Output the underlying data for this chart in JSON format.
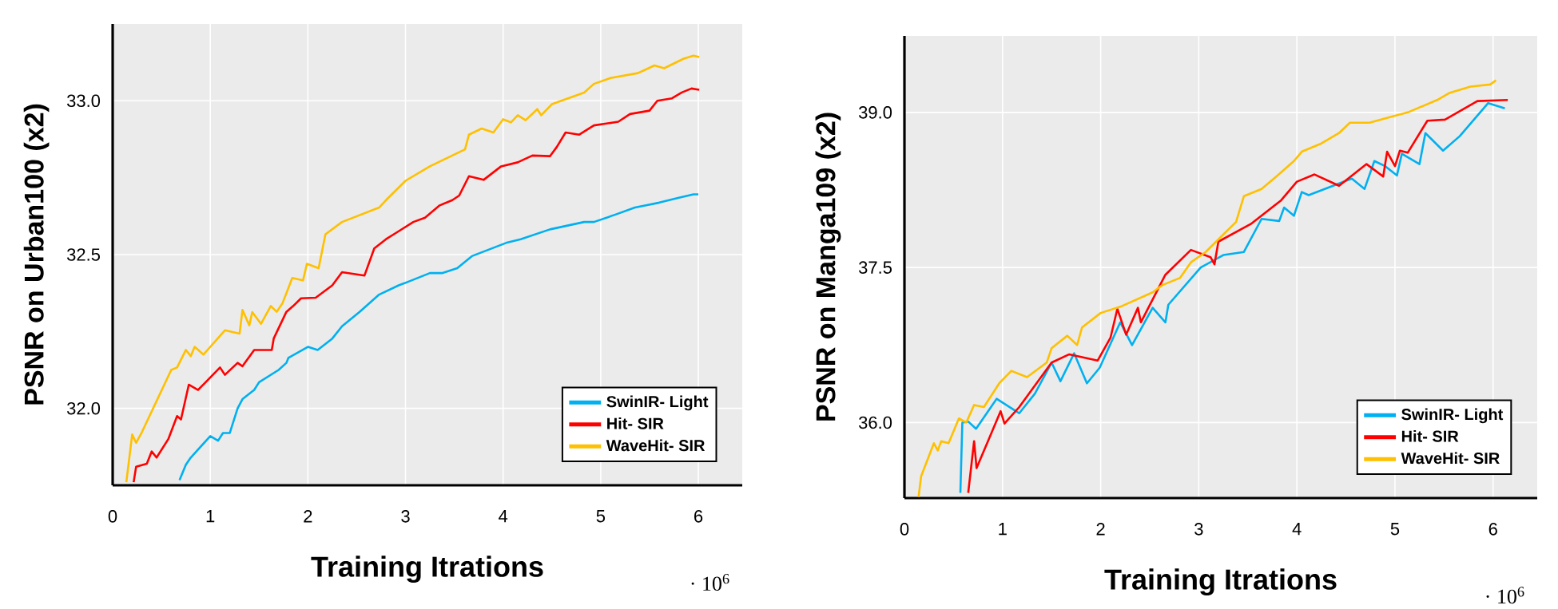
{
  "chart_data": [
    {
      "type": "line",
      "xlabel": "Training Itrations",
      "ylabel": "PSNR on Urban100 (x2)",
      "annotations": [
        "· 10$^{6}$"
      ],
      "xlim": [
        0,
        6.45
      ],
      "ylim": [
        31.75,
        33.25
      ],
      "xticks": [
        0,
        1,
        2,
        3,
        4,
        5,
        6
      ],
      "yticks": [
        {
          "value": 32,
          "label": "32.0"
        },
        {
          "value": 32.5,
          "label": "32.5"
        },
        {
          "value": 33,
          "label": "33.0"
        }
      ],
      "grid": true,
      "legend": "bottom right",
      "series": [
        {
          "name": "SwinIR- Light",
          "color": "#00b0f0",
          "x": [
            0.685,
            0.75,
            0.8,
            1.0,
            1.08,
            1.13,
            1.2,
            1.28,
            1.33,
            1.45,
            1.5,
            1.7,
            1.78,
            1.8,
            2.0,
            2.1,
            2.25,
            2.35,
            2.53,
            2.73,
            2.93,
            3.03,
            3.25,
            3.38,
            3.53,
            3.68,
            4.03,
            4.18,
            4.48,
            4.83,
            4.93,
            5.15,
            5.35,
            5.6,
            5.8,
            5.95,
            6.0
          ],
          "values": [
            31.767,
            31.817,
            31.84,
            31.91,
            31.895,
            31.92,
            31.92,
            32.0,
            32.03,
            32.06,
            32.085,
            32.125,
            32.148,
            32.164,
            32.2,
            32.19,
            32.227,
            32.267,
            32.314,
            32.37,
            32.4,
            32.412,
            32.44,
            32.44,
            32.456,
            32.495,
            32.538,
            32.55,
            32.582,
            32.606,
            32.606,
            32.63,
            32.653,
            32.669,
            32.685,
            32.696,
            32.696
          ]
        },
        {
          "name": "Hit- SIR",
          "color": "#ff0000",
          "x": [
            0.215,
            0.24,
            0.35,
            0.4,
            0.45,
            0.57,
            0.66,
            0.7,
            0.78,
            0.875,
            1.1,
            1.15,
            1.28,
            1.33,
            1.45,
            1.63,
            1.65,
            1.78,
            1.85,
            1.93,
            2.08,
            2.25,
            2.35,
            2.58,
            2.68,
            2.8,
            2.9,
            3.08,
            3.2,
            3.35,
            3.48,
            3.55,
            3.65,
            3.8,
            3.98,
            4.15,
            4.3,
            4.48,
            4.55,
            4.64,
            4.78,
            4.93,
            5.18,
            5.3,
            5.5,
            5.58,
            5.73,
            5.83,
            5.93,
            6.01
          ],
          "values": [
            31.76,
            31.81,
            31.82,
            31.86,
            31.84,
            31.9,
            31.975,
            31.964,
            32.077,
            32.06,
            32.133,
            32.109,
            32.148,
            32.137,
            32.19,
            32.19,
            32.227,
            32.314,
            32.333,
            32.358,
            32.36,
            32.4,
            32.443,
            32.432,
            32.52,
            32.55,
            32.57,
            32.606,
            32.62,
            32.66,
            32.677,
            32.692,
            32.755,
            32.743,
            32.787,
            32.8,
            32.822,
            32.82,
            32.85,
            32.897,
            32.89,
            32.92,
            32.932,
            32.957,
            32.968,
            33.0,
            33.008,
            33.027,
            33.04,
            33.036
          ]
        },
        {
          "name": "WaveHit- SIR",
          "color": "#ffc000",
          "x": [
            0.14,
            0.2,
            0.24,
            0.3,
            0.6,
            0.66,
            0.75,
            0.8,
            0.84,
            0.93,
            1.15,
            1.3,
            1.33,
            1.4,
            1.43,
            1.52,
            1.62,
            1.68,
            1.74,
            1.84,
            1.95,
            1.99,
            2.11,
            2.18,
            2.35,
            2.73,
            2.8,
            3.0,
            3.25,
            3.61,
            3.65,
            3.78,
            3.9,
            4.0,
            4.08,
            4.15,
            4.23,
            4.35,
            4.39,
            4.5,
            4.83,
            4.93,
            5.1,
            5.38,
            5.45,
            5.55,
            5.65,
            5.85,
            5.95,
            6.01
          ],
          "values": [
            31.76,
            31.915,
            31.888,
            31.923,
            32.125,
            32.133,
            32.19,
            32.17,
            32.2,
            32.175,
            32.254,
            32.243,
            32.32,
            32.27,
            32.313,
            32.275,
            32.333,
            32.314,
            32.342,
            32.424,
            32.416,
            32.47,
            32.456,
            32.566,
            32.606,
            32.653,
            32.677,
            32.74,
            32.787,
            32.842,
            32.89,
            32.91,
            32.897,
            32.94,
            32.93,
            32.953,
            32.937,
            32.973,
            32.953,
            32.989,
            33.027,
            33.055,
            33.074,
            33.09,
            33.1,
            33.115,
            33.106,
            33.137,
            33.147,
            33.142
          ]
        }
      ]
    },
    {
      "type": "line",
      "xlabel": "Training Itrations",
      "ylabel": "PSNR on Manga109 (x2)",
      "annotations": [
        "· 10$^{6}$"
      ],
      "xlim": [
        0,
        6.45
      ],
      "ylim": [
        35.27,
        39.74
      ],
      "xticks": [
        0,
        1,
        2,
        3,
        4,
        5,
        6
      ],
      "yticks": [
        {
          "value": 36,
          "label": "36.0"
        },
        {
          "value": 37.5,
          "label": "37.5"
        },
        {
          "value": 39,
          "label": "39.0"
        }
      ],
      "grid": true,
      "legend": "bottom right",
      "series": [
        {
          "name": "SwinIR- Light",
          "color": "#00b0f0",
          "x": [
            0.57,
            0.59,
            0.65,
            0.73,
            0.94,
            1.17,
            1.33,
            1.5,
            1.59,
            1.73,
            1.86,
            1.99,
            2.2,
            2.32,
            2.53,
            2.66,
            2.69,
            3.02,
            3.25,
            3.46,
            3.64,
            3.82,
            3.87,
            3.97,
            4.05,
            4.12,
            4.56,
            4.69,
            4.79,
            4.9,
            5.02,
            5.07,
            5.25,
            5.31,
            5.49,
            5.66,
            5.95,
            6.12
          ],
          "values": [
            35.32,
            36.0,
            36.01,
            35.94,
            36.23,
            36.09,
            36.28,
            36.58,
            36.4,
            36.67,
            36.38,
            36.53,
            36.97,
            36.75,
            37.11,
            36.97,
            37.14,
            37.5,
            37.62,
            37.65,
            37.97,
            37.95,
            38.08,
            38.0,
            38.23,
            38.2,
            38.36,
            38.26,
            38.53,
            38.48,
            38.39,
            38.6,
            38.5,
            38.8,
            38.63,
            38.77,
            39.09,
            39.04
          ]
        },
        {
          "name": "Hit- SIR",
          "color": "#ff0000",
          "x": [
            0.65,
            0.71,
            0.735,
            0.86,
            0.98,
            1.02,
            1.17,
            1.5,
            1.68,
            1.97,
            2.1,
            2.17,
            2.26,
            2.38,
            2.41,
            2.66,
            2.92,
            3.12,
            3.16,
            3.2,
            3.53,
            3.84,
            4.0,
            4.18,
            4.43,
            4.71,
            4.88,
            4.92,
            5.0,
            5.05,
            5.13,
            5.33,
            5.51,
            5.84,
            6.15
          ],
          "values": [
            35.32,
            35.82,
            35.56,
            35.84,
            36.11,
            35.99,
            36.15,
            36.58,
            36.66,
            36.6,
            36.82,
            37.1,
            36.85,
            37.11,
            36.97,
            37.43,
            37.67,
            37.6,
            37.53,
            37.75,
            37.92,
            38.15,
            38.33,
            38.4,
            38.29,
            38.5,
            38.38,
            38.62,
            38.48,
            38.63,
            38.61,
            38.92,
            38.93,
            39.11,
            39.12
          ]
        },
        {
          "name": "WaveHit- SIR",
          "color": "#ffc000",
          "x": [
            0.144,
            0.17,
            0.3,
            0.34,
            0.375,
            0.45,
            0.555,
            0.63,
            0.71,
            0.81,
            0.966,
            1.09,
            1.25,
            1.45,
            1.5,
            1.66,
            1.76,
            1.81,
            2.0,
            2.2,
            2.53,
            2.63,
            2.81,
            2.92,
            3.07,
            3.23,
            3.38,
            3.46,
            3.64,
            3.79,
            3.97,
            4.05,
            4.25,
            4.43,
            4.54,
            4.74,
            4.97,
            5.13,
            5.43,
            5.56,
            5.77,
            5.97,
            6.03
          ],
          "values": [
            35.28,
            35.48,
            35.8,
            35.73,
            35.82,
            35.8,
            36.04,
            36.0,
            36.17,
            36.15,
            36.38,
            36.5,
            36.44,
            36.58,
            36.72,
            36.84,
            36.75,
            36.92,
            37.06,
            37.12,
            37.26,
            37.33,
            37.4,
            37.55,
            37.65,
            37.8,
            37.94,
            38.19,
            38.26,
            38.38,
            38.53,
            38.62,
            38.7,
            38.8,
            38.9,
            38.9,
            38.96,
            39.0,
            39.12,
            39.19,
            39.25,
            39.27,
            39.31
          ]
        }
      ]
    }
  ]
}
